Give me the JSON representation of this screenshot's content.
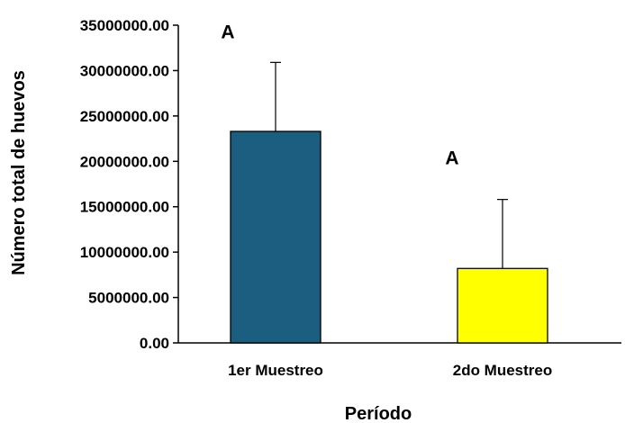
{
  "chart_data": {
    "type": "bar",
    "categories": [
      "1er Muestreo",
      "2do Muestreo"
    ],
    "values": [
      23300000,
      8200000
    ],
    "error_upper": [
      30900000,
      15800000
    ],
    "group_letters": [
      "A",
      "A"
    ],
    "bar_colors": [
      "#1b5e80",
      "#ffff00"
    ],
    "xlabel": "Período",
    "ylabel": "Número total de huevos",
    "ylim": [
      0,
      35000000
    ],
    "yticks": [
      0,
      5000000,
      10000000,
      15000000,
      20000000,
      25000000,
      30000000,
      35000000
    ],
    "ytick_labels": [
      "0.00",
      "5000000.00",
      "10000000.00",
      "15000000.00",
      "20000000.00",
      "25000000.00",
      "30000000.00",
      "35000000.00"
    ],
    "grid": false,
    "legend": false
  }
}
